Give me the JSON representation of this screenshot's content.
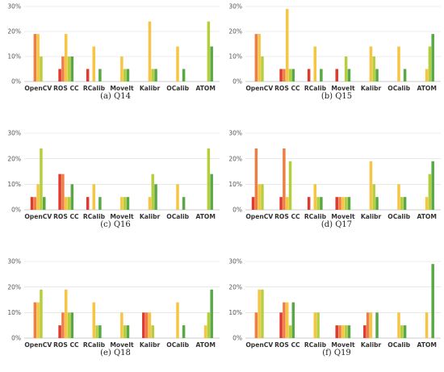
{
  "series_colors": [
    "#e03a2e",
    "#ef7e45",
    "#f6c543",
    "#b5cf3c",
    "#58a845"
  ],
  "chart_data": [
    {
      "type": "bar",
      "caption": "(a)  Q14",
      "categories": [
        "OpenCV",
        "ROS CC",
        "RCalib",
        "MoveIt",
        "Kalibr",
        "OCalib",
        "ATOM"
      ],
      "ylim": [
        0,
        30
      ],
      "yticks": [
        "0%",
        "10%",
        "20%",
        "30%"
      ],
      "grid": true,
      "series": [
        {
          "values": [
            0,
            5,
            5,
            0,
            0,
            0,
            0
          ]
        },
        {
          "values": [
            19,
            10,
            0,
            0,
            0,
            0,
            0
          ]
        },
        {
          "values": [
            19,
            19,
            14,
            10,
            24,
            14,
            0
          ]
        },
        {
          "values": [
            10,
            10,
            0,
            5,
            5,
            0,
            24
          ]
        },
        {
          "values": [
            0,
            10,
            5,
            5,
            5,
            5,
            14
          ]
        }
      ]
    },
    {
      "type": "bar",
      "caption": "(b)  Q15",
      "categories": [
        "OpenCV",
        "ROS CC",
        "RCalib",
        "MoveIt",
        "Kalibr",
        "OCalib",
        "ATOM"
      ],
      "ylim": [
        0,
        30
      ],
      "yticks": [
        "0%",
        "10%",
        "20%",
        "30%"
      ],
      "grid": true,
      "series": [
        {
          "values": [
            0,
            5,
            5,
            5,
            0,
            0,
            0
          ]
        },
        {
          "values": [
            19,
            5,
            0,
            0,
            0,
            0,
            0
          ]
        },
        {
          "values": [
            19,
            29,
            14,
            0,
            14,
            14,
            5
          ]
        },
        {
          "values": [
            10,
            5,
            0,
            10,
            10,
            0,
            14
          ]
        },
        {
          "values": [
            0,
            5,
            5,
            5,
            5,
            5,
            19
          ]
        }
      ]
    },
    {
      "type": "bar",
      "caption": "(c)  Q16",
      "categories": [
        "OpenCV",
        "ROS CC",
        "RCalib",
        "MoveIt",
        "Kalibr",
        "OCalib",
        "ATOM"
      ],
      "ylim": [
        0,
        30
      ],
      "yticks": [
        "0%",
        "10%",
        "20%",
        "30%"
      ],
      "grid": true,
      "series": [
        {
          "values": [
            5,
            14,
            5,
            0,
            0,
            0,
            0
          ]
        },
        {
          "values": [
            5,
            14,
            0,
            0,
            0,
            0,
            0
          ]
        },
        {
          "values": [
            10,
            5,
            10,
            5,
            5,
            10,
            0
          ]
        },
        {
          "values": [
            24,
            5,
            0,
            5,
            14,
            0,
            24
          ]
        },
        {
          "values": [
            5,
            10,
            5,
            5,
            10,
            5,
            14
          ]
        }
      ]
    },
    {
      "type": "bar",
      "caption": "(d)  Q17",
      "categories": [
        "OpenCV",
        "ROS CC",
        "RCalib",
        "MoveIt",
        "Kalibr",
        "OCalib",
        "ATOM"
      ],
      "ylim": [
        0,
        30
      ],
      "yticks": [
        "0%",
        "10%",
        "20%",
        "30%"
      ],
      "grid": true,
      "series": [
        {
          "values": [
            5,
            5,
            5,
            5,
            0,
            0,
            0
          ]
        },
        {
          "values": [
            24,
            24,
            0,
            5,
            0,
            0,
            0
          ]
        },
        {
          "values": [
            10,
            5,
            10,
            5,
            19,
            10,
            5
          ]
        },
        {
          "values": [
            10,
            19,
            5,
            5,
            10,
            5,
            14
          ]
        },
        {
          "values": [
            0,
            0,
            5,
            5,
            5,
            5,
            19
          ]
        }
      ]
    },
    {
      "type": "bar",
      "caption": "(e)  Q18",
      "categories": [
        "OpenCV",
        "ROS CC",
        "RCalib",
        "MoveIt",
        "Kalibr",
        "OCalib",
        "ATOM"
      ],
      "ylim": [
        0,
        30
      ],
      "yticks": [
        "0%",
        "10%",
        "20%",
        "30%"
      ],
      "grid": true,
      "series": [
        {
          "values": [
            0,
            5,
            0,
            0,
            10,
            0,
            0
          ]
        },
        {
          "values": [
            14,
            10,
            0,
            0,
            10,
            0,
            0
          ]
        },
        {
          "values": [
            14,
            19,
            14,
            10,
            10,
            14,
            5
          ]
        },
        {
          "values": [
            19,
            10,
            5,
            5,
            5,
            0,
            10
          ]
        },
        {
          "values": [
            0,
            10,
            5,
            5,
            0,
            5,
            19
          ]
        }
      ]
    },
    {
      "type": "bar",
      "caption": "(f)  Q19",
      "categories": [
        "OpenCV",
        "ROS CC",
        "RCalib",
        "MoveIt",
        "Kalibr",
        "OCalib",
        "ATOM"
      ],
      "ylim": [
        0,
        30
      ],
      "yticks": [
        "0%",
        "10%",
        "20%",
        "30%"
      ],
      "grid": true,
      "series": [
        {
          "values": [
            0,
            10,
            0,
            5,
            5,
            0,
            0
          ]
        },
        {
          "values": [
            10,
            14,
            0,
            5,
            10,
            0,
            0
          ]
        },
        {
          "values": [
            19,
            14,
            10,
            5,
            10,
            10,
            10
          ]
        },
        {
          "values": [
            19,
            5,
            10,
            5,
            0,
            5,
            0
          ]
        },
        {
          "values": [
            0,
            14,
            0,
            5,
            10,
            5,
            29
          ]
        }
      ]
    }
  ]
}
